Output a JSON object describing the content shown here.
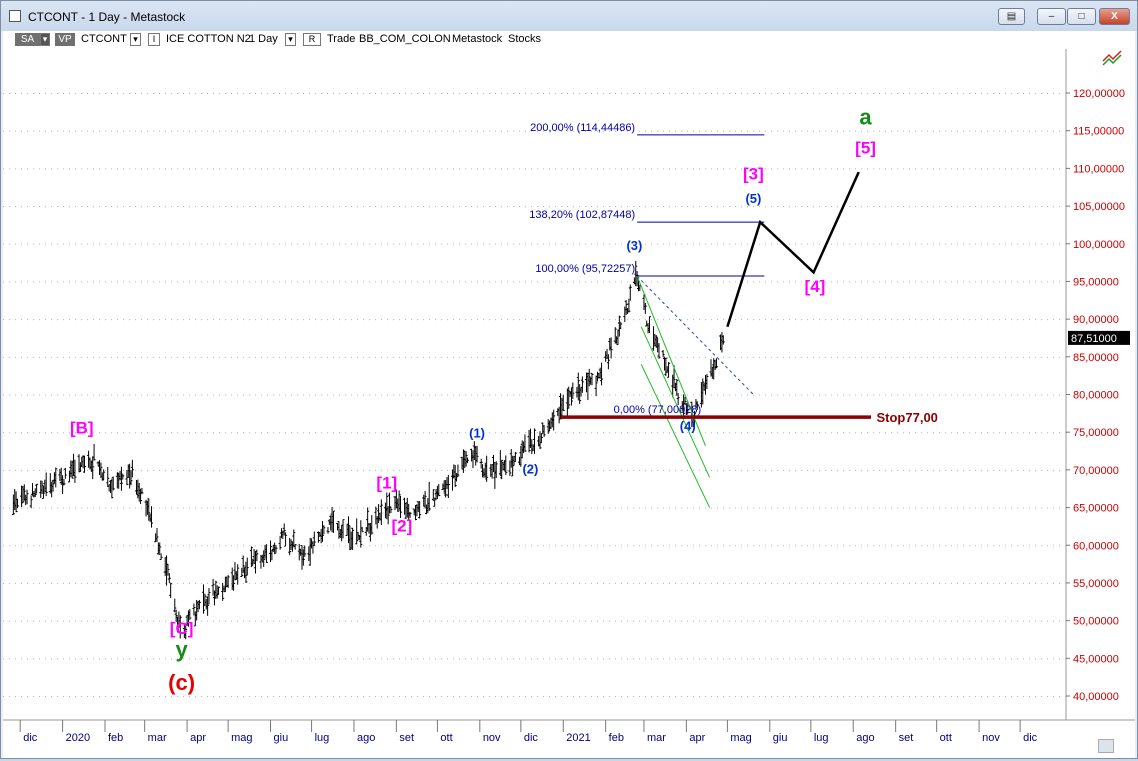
{
  "window": {
    "title": "CTCONT - 1 Day - Metastock",
    "buttons": [
      "▤",
      "–",
      "□",
      "X"
    ]
  },
  "toolbar": {
    "sa": "SA",
    "vp": "VP",
    "symbol": "CTCONT",
    "instrument_box": "I",
    "instrument": "ICE COTTON N2",
    "timeframe": "1 Day",
    "r_box": "R",
    "trade": "Trade",
    "source": "BB_COM_COLON",
    "app": "Metastock",
    "category": "Stocks"
  },
  "chart_data": {
    "type": "candlestick",
    "x_tick_labels": [
      "dic",
      "2020",
      "feb",
      "mar",
      "apr",
      "mag",
      "giu",
      "lug",
      "ago",
      "set",
      "ott",
      "nov",
      "dic",
      "2021",
      "feb",
      "mar",
      "apr",
      "mag",
      "giu",
      "lug",
      "ago",
      "set",
      "ott",
      "nov",
      "dic"
    ],
    "y_tick_labels": [
      "40,00000",
      "45,00000",
      "50,00000",
      "55,00000",
      "60,00000",
      "65,00000",
      "70,00000",
      "75,00000",
      "80,00000",
      "85,00000",
      "90,00000",
      "95,00000",
      "100,00000",
      "105,00000",
      "110,00000",
      "115,00000",
      "120,00000"
    ],
    "ylim": [
      37.0,
      126.5
    ],
    "last_price_label": "87,51000",
    "price_path": [
      [
        "2019-11-26",
        65.5
      ],
      [
        "2019-12-20",
        67.5
      ],
      [
        "2020-01-15",
        70.5
      ],
      [
        "2020-01-24",
        71.5
      ],
      [
        "2020-02-05",
        68.0
      ],
      [
        "2020-02-20",
        69.5
      ],
      [
        "2020-02-25",
        68.0
      ],
      [
        "2020-03-05",
        63.5
      ],
      [
        "2020-03-18",
        56.5
      ],
      [
        "2020-03-25",
        50.0
      ],
      [
        "2020-03-31",
        49.5
      ],
      [
        "2020-04-15",
        52.5
      ],
      [
        "2020-04-30",
        55.0
      ],
      [
        "2020-05-20",
        58.0
      ],
      [
        "2020-06-03",
        59.0
      ],
      [
        "2020-06-10",
        61.5
      ],
      [
        "2020-06-25",
        59.0
      ],
      [
        "2020-07-15",
        63.0
      ],
      [
        "2020-08-03",
        61.0
      ],
      [
        "2020-08-20",
        64.0
      ],
      [
        "2020-08-31",
        65.5
      ],
      [
        "2020-09-14",
        64.5
      ],
      [
        "2020-10-01",
        66.5
      ],
      [
        "2020-10-15",
        69.5
      ],
      [
        "2020-10-28",
        72.0
      ],
      [
        "2020-11-05",
        69.5
      ],
      [
        "2020-11-25",
        71.0
      ],
      [
        "2020-12-03",
        72.5
      ],
      [
        "2020-12-22",
        76.0
      ],
      [
        "2021-01-08",
        80.5
      ],
      [
        "2021-01-25",
        82.0
      ],
      [
        "2021-02-10",
        88.0
      ],
      [
        "2021-02-24",
        95.72
      ],
      [
        "2021-03-05",
        88.5
      ],
      [
        "2021-03-15",
        85.0
      ],
      [
        "2021-03-26",
        80.0
      ],
      [
        "2021-04-06",
        77.0
      ],
      [
        "2021-04-15",
        81.0
      ],
      [
        "2021-04-23",
        84.5
      ],
      [
        "2021-04-29",
        87.51
      ]
    ],
    "fib_levels": [
      {
        "label": "200,00% (114,44486)",
        "value": 114.44486
      },
      {
        "label": "138,20% (102,87448)",
        "value": 102.87448
      },
      {
        "label": "100,00% (95,72257)",
        "value": 95.72257
      },
      {
        "label": "0,00% (77,00028)",
        "value": 77.00028
      }
    ],
    "stop": {
      "label": "Stop77,00",
      "value": 77.0,
      "color": "#8b0000"
    },
    "projection": [
      [
        "2021-05-01",
        89.0
      ],
      [
        "2021-05-25",
        102.87
      ],
      [
        "2021-07-03",
        96.2
      ],
      [
        "2021-08-05",
        109.5
      ]
    ],
    "wave_labels": [
      {
        "text": "[B]",
        "x": "2020-01-15",
        "y": 74.8,
        "color": "#ff00ff"
      },
      {
        "text": "[C]",
        "x": "2020-03-28",
        "y": 48.2,
        "color": "#ff00ff"
      },
      {
        "text": "y",
        "x": "2020-03-28",
        "y": 45.2,
        "color": "#1a8a1a"
      },
      {
        "text": "(c)",
        "x": "2020-03-28",
        "y": 40.8,
        "color": "#e60000"
      },
      {
        "text": "[1]",
        "x": "2020-08-25",
        "y": 67.5,
        "color": "#ff00ff"
      },
      {
        "text": "[2]",
        "x": "2020-09-05",
        "y": 61.8,
        "color": "#ff00ff"
      },
      {
        "text": "(1)",
        "x": "2020-10-30",
        "y": 74.3,
        "color": "#0033cc"
      },
      {
        "text": "(2)",
        "x": "2020-12-08",
        "y": 69.5,
        "color": "#0033cc"
      },
      {
        "text": "(3)",
        "x": "2021-02-22",
        "y": 99.2,
        "color": "#0033cc"
      },
      {
        "text": "(4)",
        "x": "2021-04-02",
        "y": 75.2,
        "color": "#0033cc"
      },
      {
        "text": "[3]",
        "x": "2021-05-20",
        "y": 108.5,
        "color": "#ff00ff"
      },
      {
        "text": "(5)",
        "x": "2021-05-20",
        "y": 105.4,
        "color": "#0033cc"
      },
      {
        "text": "[4]",
        "x": "2021-07-04",
        "y": 93.6,
        "color": "#ff00ff"
      },
      {
        "text": "a",
        "x": "2021-08-10",
        "y": 115.8,
        "color": "#1a8a1a"
      },
      {
        "text": "[5]",
        "x": "2021-08-10",
        "y": 112.0,
        "color": "#ff00ff"
      }
    ],
    "channel": {
      "upper": [
        [
          "2021-02-24",
          95.7
        ],
        [
          "2021-05-20",
          80.0
        ]
      ],
      "lines": [
        [
          [
            "2021-02-24",
            95.7
          ],
          [
            "2021-04-15",
            73.2
          ]
        ],
        [
          [
            "2021-02-27",
            89.0
          ],
          [
            "2021-04-18",
            69.0
          ]
        ],
        [
          [
            "2021-02-27",
            84.0
          ],
          [
            "2021-04-18",
            65.0
          ]
        ]
      ]
    },
    "colors": {
      "price": "#000000",
      "fib": "#0000aa",
      "projection": "#000000",
      "channel": "#22bb22",
      "axis_text": "#cc0000",
      "date_text": "#000080"
    }
  }
}
